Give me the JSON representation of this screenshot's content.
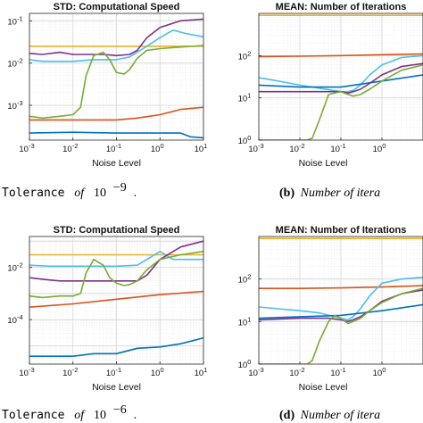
{
  "captions": [
    {
      "id": "a",
      "prefix": "Tolerance",
      "of": "of",
      "base": "10",
      "exp": "−9",
      "suffix": "."
    },
    {
      "id": "b",
      "label": "(b)",
      "text": "Number of itera"
    },
    {
      "id": "c",
      "prefix": "Tolerance",
      "of": "of",
      "base": "10",
      "exp": "−6",
      "suffix": "."
    },
    {
      "id": "d",
      "label": "(d)",
      "text": "Number of itera"
    }
  ],
  "colors": {
    "blue": "#0072BD",
    "orange": "#D95319",
    "yellow": "#EDB120",
    "purple": "#7E2F8E",
    "green": "#77AC30",
    "cyan": "#4DBEEE"
  },
  "chart_data": [
    {
      "id": "panel-top-left",
      "type": "line",
      "title": "STD: Computational Speed",
      "xlabel": "Noise Level",
      "ylabel": "",
      "xscale": "log",
      "yscale": "log",
      "xlim": [
        0.001,
        10
      ],
      "ylim": [
        0.00015,
        0.15
      ],
      "grid": true,
      "xticks": [
        {
          "v": 0.001,
          "b": "10",
          "e": "-3"
        },
        {
          "v": 0.01,
          "b": "10",
          "e": "-2"
        },
        {
          "v": 0.1,
          "b": "10",
          "e": "-1"
        },
        {
          "v": 1,
          "b": "10",
          "e": "0"
        },
        {
          "v": 10,
          "b": "10",
          "e": "1"
        }
      ],
      "yticks": [
        {
          "v": 0.001,
          "b": "10",
          "e": "-3"
        },
        {
          "v": 0.01,
          "b": "10",
          "e": "-2"
        },
        {
          "v": 0.1,
          "b": "10",
          "e": "-1"
        }
      ],
      "series": [
        {
          "color": "yellow",
          "x": [
            0.001,
            0.01,
            0.1,
            1,
            10
          ],
          "y": [
            0.025,
            0.025,
            0.025,
            0.025,
            0.025
          ]
        },
        {
          "color": "cyan",
          "x": [
            0.001,
            0.002,
            0.003,
            0.01,
            0.03,
            0.1,
            0.2,
            0.5,
            1,
            2,
            4,
            10
          ],
          "y": [
            0.012,
            0.011,
            0.011,
            0.011,
            0.012,
            0.012,
            0.014,
            0.025,
            0.04,
            0.06,
            0.05,
            0.042
          ]
        },
        {
          "color": "purple",
          "x": [
            0.001,
            0.002,
            0.005,
            0.01,
            0.02,
            0.05,
            0.1,
            0.2,
            0.3,
            0.5,
            1,
            3,
            10
          ],
          "y": [
            0.017,
            0.016,
            0.018,
            0.016,
            0.016,
            0.016,
            0.015,
            0.016,
            0.02,
            0.04,
            0.07,
            0.1,
            0.11
          ]
        },
        {
          "color": "green",
          "x": [
            0.001,
            0.002,
            0.005,
            0.01,
            0.015,
            0.02,
            0.03,
            0.05,
            0.07,
            0.1,
            0.15,
            0.2,
            0.3,
            0.5,
            1,
            3,
            10
          ],
          "y": [
            0.00055,
            0.0005,
            0.00055,
            0.0006,
            0.0009,
            0.005,
            0.015,
            0.018,
            0.012,
            0.006,
            0.0055,
            0.007,
            0.013,
            0.02,
            0.022,
            0.024,
            0.026
          ]
        },
        {
          "color": "orange",
          "x": [
            0.001,
            0.003,
            0.01,
            0.03,
            0.1,
            0.3,
            1,
            3,
            10
          ],
          "y": [
            0.00045,
            0.00045,
            0.00045,
            0.00045,
            0.00045,
            0.0005,
            0.0006,
            0.0008,
            0.0009
          ]
        },
        {
          "color": "blue",
          "x": [
            0.001,
            0.01,
            0.1,
            1,
            3,
            5,
            10
          ],
          "y": [
            0.00022,
            0.00023,
            0.00022,
            0.00022,
            0.00022,
            0.00018,
            0.00017
          ]
        }
      ]
    },
    {
      "id": "panel-top-right",
      "type": "line",
      "title": "MEAN: Number of Iterations",
      "xlabel": "Noise Level",
      "ylabel": "",
      "xscale": "log",
      "yscale": "log",
      "xlim": [
        0.001,
        10
      ],
      "ylim": [
        1,
        1000
      ],
      "grid": true,
      "xticks": [
        {
          "v": 0.001,
          "b": "10",
          "e": "-3"
        },
        {
          "v": 0.01,
          "b": "10",
          "e": "-2"
        },
        {
          "v": 0.1,
          "b": "10",
          "e": "-1"
        },
        {
          "v": 1,
          "b": "10",
          "e": "0"
        }
      ],
      "yticks": [
        {
          "v": 1,
          "b": "10",
          "e": "0"
        },
        {
          "v": 10,
          "b": "10",
          "e": "1"
        },
        {
          "v": 100,
          "b": "10",
          "e": "2"
        }
      ],
      "series": [
        {
          "color": "yellow",
          "x": [
            0.001,
            0.01,
            0.1,
            1,
            10
          ],
          "y": [
            900,
            900,
            900,
            900,
            900
          ]
        },
        {
          "color": "orange",
          "x": [
            0.001,
            0.01,
            0.1,
            1,
            10
          ],
          "y": [
            95,
            97,
            100,
            105,
            110
          ]
        },
        {
          "color": "cyan",
          "x": [
            0.001,
            0.003,
            0.01,
            0.03,
            0.1,
            0.15,
            0.2,
            0.3,
            0.5,
            1,
            3,
            10
          ],
          "y": [
            30,
            25,
            20,
            17,
            14,
            14,
            15,
            20,
            35,
            60,
            90,
            100
          ]
        },
        {
          "color": "blue",
          "x": [
            0.001,
            0.01,
            0.1,
            1,
            10
          ],
          "y": [
            20,
            18,
            18,
            25,
            35
          ]
        },
        {
          "color": "purple",
          "x": [
            0.001,
            0.01,
            0.05,
            0.1,
            0.15,
            0.2,
            0.3,
            0.5,
            1,
            3,
            10
          ],
          "y": [
            14,
            14,
            14,
            14,
            13,
            14,
            16,
            22,
            35,
            55,
            65
          ]
        },
        {
          "color": "green",
          "x": [
            0.001,
            0.01,
            0.015,
            0.02,
            0.03,
            0.05,
            0.1,
            0.15,
            0.2,
            0.3,
            0.5,
            1,
            3,
            10
          ],
          "y": [
            1,
            1,
            1,
            1.1,
            3,
            12,
            14,
            12,
            11,
            12,
            16,
            25,
            45,
            60
          ]
        }
      ]
    },
    {
      "id": "panel-bottom-left",
      "type": "line",
      "title": "STD: Computational Speed",
      "xlabel": "Noise Level",
      "ylabel": "",
      "xscale": "log",
      "yscale": "log",
      "xlim": [
        0.001,
        10
      ],
      "ylim": [
        2e-06,
        0.15
      ],
      "grid": true,
      "xticks": [
        {
          "v": 0.001,
          "b": "10",
          "e": "-3"
        },
        {
          "v": 0.01,
          "b": "10",
          "e": "-2"
        },
        {
          "v": 0.1,
          "b": "10",
          "e": "-1"
        },
        {
          "v": 1,
          "b": "10",
          "e": "0"
        },
        {
          "v": 10,
          "b": "10",
          "e": "1"
        }
      ],
      "yticks": [
        {
          "v": 0.0001,
          "b": "10",
          "e": "-4"
        },
        {
          "v": 0.01,
          "b": "10",
          "e": "-2"
        }
      ],
      "series": [
        {
          "color": "yellow",
          "x": [
            0.001,
            0.01,
            0.1,
            1,
            10
          ],
          "y": [
            0.03,
            0.03,
            0.03,
            0.03,
            0.03
          ]
        },
        {
          "color": "cyan",
          "x": [
            0.001,
            0.003,
            0.01,
            0.03,
            0.1,
            0.3,
            0.5,
            1,
            2,
            5,
            10
          ],
          "y": [
            0.012,
            0.011,
            0.011,
            0.011,
            0.011,
            0.012,
            0.02,
            0.04,
            0.02,
            0.02,
            0.02
          ]
        },
        {
          "color": "purple",
          "x": [
            0.001,
            0.002,
            0.005,
            0.01,
            0.03,
            0.1,
            0.2,
            0.3,
            0.5,
            1,
            3,
            10
          ],
          "y": [
            0.004,
            0.0035,
            0.003,
            0.003,
            0.003,
            0.003,
            0.003,
            0.003,
            0.005,
            0.02,
            0.06,
            0.1
          ]
        },
        {
          "color": "green",
          "x": [
            0.001,
            0.002,
            0.005,
            0.01,
            0.015,
            0.02,
            0.03,
            0.05,
            0.07,
            0.1,
            0.15,
            0.2,
            0.3,
            0.5,
            1,
            3,
            10
          ],
          "y": [
            0.0008,
            0.0007,
            0.0008,
            0.0008,
            0.001,
            0.006,
            0.02,
            0.012,
            0.004,
            0.0025,
            0.002,
            0.0022,
            0.003,
            0.008,
            0.02,
            0.03,
            0.04
          ]
        },
        {
          "color": "orange",
          "x": [
            0.001,
            0.01,
            0.1,
            1,
            10
          ],
          "y": [
            0.0003,
            0.0004,
            0.0006,
            0.0009,
            0.0012
          ]
        },
        {
          "color": "blue",
          "x": [
            0.001,
            0.01,
            0.03,
            0.1,
            0.3,
            1,
            3,
            10
          ],
          "y": [
            4e-06,
            4e-06,
            5e-06,
            5e-06,
            8e-06,
            9e-06,
            1.2e-05,
            2e-05
          ]
        }
      ]
    },
    {
      "id": "panel-bottom-right",
      "type": "line",
      "title": "MEAN: Number of Iterations",
      "xlabel": "Noise Level",
      "ylabel": "",
      "xscale": "log",
      "yscale": "log",
      "xlim": [
        0.001,
        10
      ],
      "ylim": [
        1,
        1000
      ],
      "grid": true,
      "xticks": [
        {
          "v": 0.001,
          "b": "10",
          "e": "-3"
        },
        {
          "v": 0.01,
          "b": "10",
          "e": "-2"
        },
        {
          "v": 0.1,
          "b": "10",
          "e": "-1"
        },
        {
          "v": 1,
          "b": "10",
          "e": "0"
        }
      ],
      "yticks": [
        {
          "v": 1,
          "b": "10",
          "e": "0"
        },
        {
          "v": 10,
          "b": "10",
          "e": "1"
        },
        {
          "v": 100,
          "b": "10",
          "e": "2"
        }
      ],
      "series": [
        {
          "color": "yellow",
          "x": [
            0.001,
            0.01,
            0.1,
            1,
            10
          ],
          "y": [
            900,
            900,
            900,
            900,
            900
          ]
        },
        {
          "color": "orange",
          "x": [
            0.001,
            0.01,
            0.1,
            1,
            10
          ],
          "y": [
            60,
            60,
            62,
            65,
            70
          ]
        },
        {
          "color": "cyan",
          "x": [
            0.001,
            0.003,
            0.01,
            0.03,
            0.1,
            0.15,
            0.2,
            0.3,
            0.5,
            1,
            3,
            10
          ],
          "y": [
            22,
            20,
            18,
            16,
            12,
            11,
            13,
            20,
            40,
            80,
            100,
            110
          ]
        },
        {
          "color": "blue",
          "x": [
            0.001,
            0.01,
            0.1,
            1,
            10
          ],
          "y": [
            12,
            13,
            14,
            18,
            25
          ]
        },
        {
          "color": "purple",
          "x": [
            0.001,
            0.01,
            0.05,
            0.1,
            0.15,
            0.2,
            0.3,
            0.5,
            1,
            3,
            10
          ],
          "y": [
            11,
            12,
            12,
            11,
            10,
            11,
            13,
            18,
            30,
            45,
            55
          ]
        },
        {
          "color": "green",
          "x": [
            0.001,
            0.01,
            0.015,
            0.02,
            0.03,
            0.05,
            0.07,
            0.1,
            0.15,
            0.2,
            0.3,
            0.5,
            1,
            3,
            10
          ],
          "y": [
            1,
            1,
            1,
            1.2,
            3.5,
            10,
            14,
            12,
            9,
            10,
            12,
            18,
            28,
            45,
            60
          ]
        }
      ]
    }
  ]
}
